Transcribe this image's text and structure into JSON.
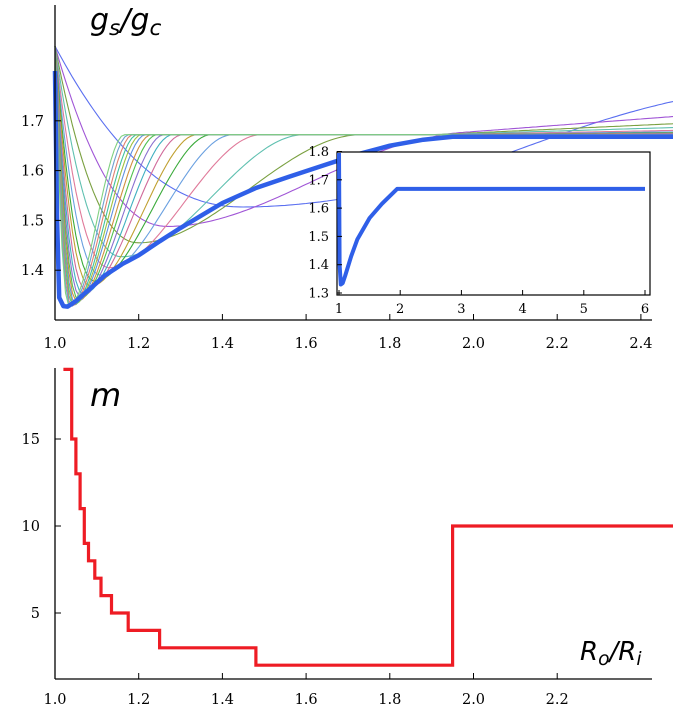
{
  "chart_data": [
    {
      "id": "top",
      "type": "line",
      "ylabel_main": "g",
      "ylabel_sub": "s",
      "ylabel_sep": "/g",
      "ylabel_sub2": "c",
      "xlim": [
        1.0,
        2.5
      ],
      "ylim": [
        1.3,
        1.8
      ],
      "xticks": [
        "1.0",
        "1.2",
        "1.4",
        "1.6",
        "1.8",
        "2.0",
        "2.2",
        "2.4"
      ],
      "yticks": [
        "1.4",
        "1.5",
        "1.6",
        "1.7"
      ],
      "thin_series_note": "family of curves, one per m (m = 2 … 20)",
      "thin_series_colors": [
        "#5a6ff0",
        "#a055d6",
        "#7aa040",
        "#5fc0b0",
        "#e07a9a",
        "#6aa0e0",
        "#3aaa3a",
        "#c0a030",
        "#d06a9a",
        "#40b0c0",
        "#8a70d0",
        "#50c050",
        "#d09040",
        "#6090e0",
        "#a0c040",
        "#40c0a0",
        "#e08070",
        "#70a0d0",
        "#80d080"
      ],
      "thin_series_minima": [
        {
          "m": 2,
          "x_min": 1.45,
          "y_min": 1.527,
          "tail": 1.745
        },
        {
          "m": 3,
          "x_min": 1.27,
          "y_min": 1.488,
          "tail": 1.71
        },
        {
          "m": 4,
          "x_min": 1.2,
          "y_min": 1.455,
          "tail": 1.695
        },
        {
          "m": 5,
          "x_min": 1.16,
          "y_min": 1.427,
          "tail": 1.687
        },
        {
          "m": 6,
          "x_min": 1.13,
          "y_min": 1.405,
          "tail": 1.681
        },
        {
          "m": 7,
          "x_min": 1.11,
          "y_min": 1.39,
          "tail": 1.678
        },
        {
          "m": 8,
          "x_min": 1.095,
          "y_min": 1.378,
          "tail": 1.676
        },
        {
          "m": 9,
          "x_min": 1.085,
          "y_min": 1.368,
          "tail": 1.675
        },
        {
          "m": 10,
          "x_min": 1.075,
          "y_min": 1.36,
          "tail": 1.674
        },
        {
          "m": 11,
          "x_min": 1.068,
          "y_min": 1.352,
          "tail": 1.673
        },
        {
          "m": 12,
          "x_min": 1.062,
          "y_min": 1.346,
          "tail": 1.673
        },
        {
          "m": 13,
          "x_min": 1.057,
          "y_min": 1.341,
          "tail": 1.672
        },
        {
          "m": 14,
          "x_min": 1.053,
          "y_min": 1.337,
          "tail": 1.672
        },
        {
          "m": 15,
          "x_min": 1.049,
          "y_min": 1.334,
          "tail": 1.672
        },
        {
          "m": 16,
          "x_min": 1.046,
          "y_min": 1.331,
          "tail": 1.671
        },
        {
          "m": 17,
          "x_min": 1.043,
          "y_min": 1.329,
          "tail": 1.671
        },
        {
          "m": 18,
          "x_min": 1.04,
          "y_min": 1.328,
          "tail": 1.671
        },
        {
          "m": 19,
          "x_min": 1.037,
          "y_min": 1.327,
          "tail": 1.67
        },
        {
          "m": 20,
          "x_min": 1.034,
          "y_min": 1.326,
          "tail": 1.67
        }
      ],
      "envelope": {
        "color": "#2f5fe8",
        "x": [
          1.0,
          1.005,
          1.01,
          1.02,
          1.03,
          1.05,
          1.08,
          1.12,
          1.16,
          1.2,
          1.25,
          1.3,
          1.35,
          1.4,
          1.48,
          1.56,
          1.64,
          1.72,
          1.8,
          1.88,
          1.95,
          2.0,
          2.5
        ],
        "y": [
          1.8,
          1.5,
          1.345,
          1.328,
          1.327,
          1.338,
          1.36,
          1.39,
          1.412,
          1.43,
          1.458,
          1.485,
          1.51,
          1.535,
          1.565,
          1.588,
          1.61,
          1.632,
          1.65,
          1.662,
          1.668,
          1.668,
          1.668
        ]
      },
      "inset": {
        "xlim": [
          1,
          6
        ],
        "ylim": [
          1.3,
          1.8
        ],
        "xticks": [
          "1",
          "2",
          "3",
          "4",
          "5",
          "6"
        ],
        "yticks": [
          "1.3",
          "1.4",
          "1.5",
          "1.6",
          "1.7",
          "1.8"
        ],
        "x": [
          1.0,
          1.01,
          1.03,
          1.06,
          1.1,
          1.2,
          1.3,
          1.5,
          1.7,
          1.95,
          6.0
        ],
        "y": [
          1.8,
          1.4,
          1.33,
          1.335,
          1.36,
          1.43,
          1.49,
          1.565,
          1.615,
          1.668,
          1.668
        ]
      }
    },
    {
      "id": "bottom",
      "type": "line",
      "ylabel": "m",
      "xlabel_main": "R",
      "xlabel_sub": "o",
      "xlabel_sep": "/R",
      "xlabel_sub2": "i",
      "xlim": [
        1.0,
        2.5
      ],
      "ylim": [
        1,
        19
      ],
      "xticks": [
        "1.0",
        "1.2",
        "1.4",
        "1.6",
        "1.8",
        "2.0",
        "2.2"
      ],
      "yticks": [
        "5",
        "10",
        "15"
      ],
      "color": "#ee1c24",
      "steps": [
        {
          "x_from": 1.02,
          "x_to": 1.04,
          "m": 19
        },
        {
          "x_from": 1.04,
          "x_to": 1.045,
          "m": 15
        },
        {
          "x_from": 1.045,
          "x_to": 1.05,
          "m": 15
        },
        {
          "x_from": 1.05,
          "x_to": 1.06,
          "m": 13
        },
        {
          "x_from": 1.06,
          "x_to": 1.07,
          "m": 11
        },
        {
          "x_from": 1.07,
          "x_to": 1.08,
          "m": 9
        },
        {
          "x_from": 1.08,
          "x_to": 1.095,
          "m": 8
        },
        {
          "x_from": 1.095,
          "x_to": 1.11,
          "m": 7
        },
        {
          "x_from": 1.11,
          "x_to": 1.135,
          "m": 6
        },
        {
          "x_from": 1.135,
          "x_to": 1.175,
          "m": 5
        },
        {
          "x_from": 1.175,
          "x_to": 1.25,
          "m": 4
        },
        {
          "x_from": 1.25,
          "x_to": 1.48,
          "m": 3
        },
        {
          "x_from": 1.48,
          "x_to": 1.95,
          "m": 2
        },
        {
          "x_from": 1.95,
          "x_to": 2.5,
          "m": 10
        }
      ]
    }
  ]
}
